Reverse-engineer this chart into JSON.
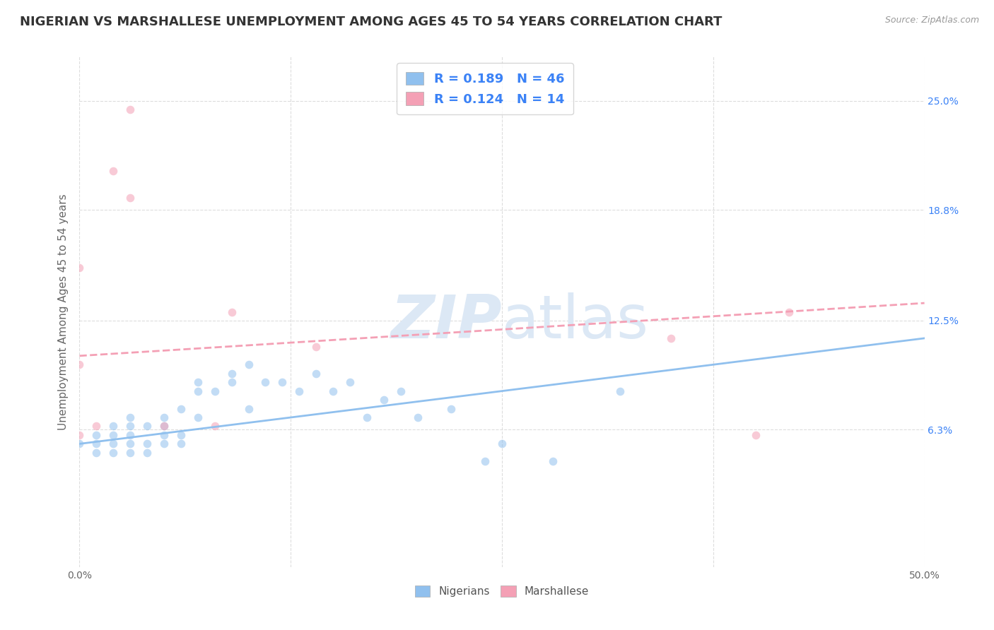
{
  "title": "NIGERIAN VS MARSHALLESE UNEMPLOYMENT AMONG AGES 45 TO 54 YEARS CORRELATION CHART",
  "source": "Source: ZipAtlas.com",
  "ylabel": "Unemployment Among Ages 45 to 54 years",
  "ytick_labels": [
    "6.3%",
    "12.5%",
    "18.8%",
    "25.0%"
  ],
  "ytick_values": [
    0.063,
    0.125,
    0.188,
    0.25
  ],
  "xlim": [
    0.0,
    0.5
  ],
  "ylim": [
    -0.015,
    0.275
  ],
  "xgrid_values": [
    0.0,
    0.125,
    0.25,
    0.375,
    0.5
  ],
  "ygrid_values": [
    0.063,
    0.125,
    0.188,
    0.25
  ],
  "nigerian_color": "#90C0EE",
  "marshallese_color": "#F4A0B5",
  "nigerian_R": 0.189,
  "nigerian_N": 46,
  "marshallese_R": 0.124,
  "marshallese_N": 14,
  "legend_color": "#3B82F6",
  "watermark_color": "#DCE8F5",
  "nigerian_scatter_x": [
    0.0,
    0.01,
    0.01,
    0.01,
    0.02,
    0.02,
    0.02,
    0.02,
    0.03,
    0.03,
    0.03,
    0.03,
    0.03,
    0.04,
    0.04,
    0.04,
    0.05,
    0.05,
    0.05,
    0.05,
    0.06,
    0.06,
    0.06,
    0.07,
    0.07,
    0.07,
    0.08,
    0.09,
    0.09,
    0.1,
    0.1,
    0.11,
    0.12,
    0.13,
    0.14,
    0.15,
    0.16,
    0.17,
    0.18,
    0.19,
    0.2,
    0.22,
    0.24,
    0.25,
    0.28,
    0.32
  ],
  "nigerian_scatter_y": [
    0.055,
    0.05,
    0.055,
    0.06,
    0.05,
    0.055,
    0.06,
    0.065,
    0.05,
    0.055,
    0.06,
    0.065,
    0.07,
    0.05,
    0.055,
    0.065,
    0.055,
    0.06,
    0.065,
    0.07,
    0.055,
    0.06,
    0.075,
    0.07,
    0.085,
    0.09,
    0.085,
    0.09,
    0.095,
    0.075,
    0.1,
    0.09,
    0.09,
    0.085,
    0.095,
    0.085,
    0.09,
    0.07,
    0.08,
    0.085,
    0.07,
    0.075,
    0.045,
    0.055,
    0.045,
    0.085
  ],
  "marshallese_scatter_x": [
    0.0,
    0.0,
    0.0,
    0.01,
    0.02,
    0.03,
    0.03,
    0.05,
    0.08,
    0.09,
    0.14,
    0.35,
    0.4,
    0.42
  ],
  "marshallese_scatter_y": [
    0.06,
    0.1,
    0.155,
    0.065,
    0.21,
    0.195,
    0.245,
    0.065,
    0.065,
    0.13,
    0.11,
    0.115,
    0.06,
    0.13
  ],
  "nigerian_line_x": [
    0.0,
    0.5
  ],
  "nigerian_line_y": [
    0.055,
    0.115
  ],
  "marshallese_line_x": [
    0.0,
    0.5
  ],
  "marshallese_line_y": [
    0.105,
    0.135
  ],
  "background_color": "#FFFFFF",
  "grid_color": "#DDDDDD",
  "scatter_alpha": 0.55,
  "scatter_size": 70,
  "line_width": 2.0,
  "title_fontsize": 13,
  "axis_label_fontsize": 11,
  "tick_fontsize": 10,
  "legend_fontsize": 13
}
